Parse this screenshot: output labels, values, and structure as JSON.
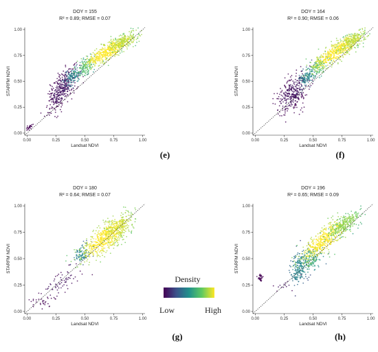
{
  "chart_data": [
    {
      "id": "e",
      "type": "scatter",
      "title": "DOY = 155",
      "stats": "R² = 0.89; RMSE = 0.07",
      "xlabel": "Landsat NDVI",
      "ylabel": "STARFM NDVI",
      "xlim": [
        -0.02,
        1.02
      ],
      "ylim": [
        -0.02,
        1.02
      ],
      "xticks": [
        "0.00",
        "0.25",
        "0.50",
        "0.75",
        "1.00"
      ],
      "yticks": [
        "0.00",
        "0.25",
        "0.50",
        "0.75",
        "1.00"
      ],
      "panel_label": "(e)",
      "clusters": [
        {
          "x": 0.3,
          "y": 0.42,
          "sx": 0.06,
          "sy": 0.1,
          "rho": 0.6,
          "n": 380,
          "d": 0.05
        },
        {
          "x": 0.4,
          "y": 0.55,
          "sx": 0.04,
          "sy": 0.05,
          "rho": 0.5,
          "n": 120,
          "d": 0.45
        },
        {
          "x": 0.5,
          "y": 0.63,
          "sx": 0.04,
          "sy": 0.05,
          "rho": 0.5,
          "n": 120,
          "d": 0.7
        },
        {
          "x": 0.72,
          "y": 0.8,
          "sx": 0.11,
          "sy": 0.08,
          "rho": 0.85,
          "n": 520,
          "d": 1.0
        },
        {
          "x": 0.83,
          "y": 0.88,
          "sx": 0.06,
          "sy": 0.05,
          "rho": 0.7,
          "n": 160,
          "d": 0.88
        },
        {
          "x": 0.02,
          "y": 0.06,
          "sx": 0.012,
          "sy": 0.012,
          "rho": 0.5,
          "n": 25,
          "d": 0.0
        }
      ]
    },
    {
      "id": "f",
      "type": "scatter",
      "title": "DOY = 164",
      "stats": "R² = 0.90; RMSE = 0.06",
      "xlabel": "Landsat NDVI",
      "ylabel": "STARFM NDVI",
      "xlim": [
        -0.02,
        1.02
      ],
      "ylim": [
        -0.02,
        1.02
      ],
      "xticks": [
        "0.00",
        "0.25",
        "0.50",
        "0.75",
        "1.00"
      ],
      "yticks": [
        "0.00",
        "0.25",
        "0.50",
        "0.75",
        "1.00"
      ],
      "panel_label": "(f)",
      "clusters": [
        {
          "x": 0.32,
          "y": 0.38,
          "sx": 0.07,
          "sy": 0.1,
          "rho": 0.6,
          "n": 340,
          "d": 0.05
        },
        {
          "x": 0.45,
          "y": 0.55,
          "sx": 0.04,
          "sy": 0.05,
          "rho": 0.5,
          "n": 120,
          "d": 0.45
        },
        {
          "x": 0.55,
          "y": 0.65,
          "sx": 0.04,
          "sy": 0.05,
          "rho": 0.5,
          "n": 110,
          "d": 0.72
        },
        {
          "x": 0.72,
          "y": 0.8,
          "sx": 0.11,
          "sy": 0.09,
          "rho": 0.85,
          "n": 540,
          "d": 1.0
        },
        {
          "x": 0.83,
          "y": 0.88,
          "sx": 0.06,
          "sy": 0.05,
          "rho": 0.7,
          "n": 160,
          "d": 0.88
        }
      ]
    },
    {
      "id": "g",
      "type": "scatter",
      "title": "DOY = 180",
      "stats": "R² = 0.64; RMSE = 0.07",
      "xlabel": "Landsat NDVI",
      "ylabel": "STARFM NDVI",
      "xlim": [
        -0.02,
        1.02
      ],
      "ylim": [
        -0.02,
        1.02
      ],
      "xticks": [
        "0.00",
        "0.25",
        "0.50",
        "0.75",
        "1.00"
      ],
      "yticks": [
        "0.00",
        "0.25",
        "0.50",
        "0.75",
        "1.00"
      ],
      "panel_label": "(g)",
      "clusters": [
        {
          "x": 0.28,
          "y": 0.25,
          "sx": 0.1,
          "sy": 0.09,
          "rho": 0.7,
          "n": 70,
          "d": 0.05
        },
        {
          "x": 0.48,
          "y": 0.55,
          "sx": 0.04,
          "sy": 0.05,
          "rho": 0.4,
          "n": 90,
          "d": 0.45
        },
        {
          "x": 0.68,
          "y": 0.7,
          "sx": 0.1,
          "sy": 0.1,
          "rho": 0.75,
          "n": 620,
          "d": 1.0
        },
        {
          "x": 0.8,
          "y": 0.8,
          "sx": 0.06,
          "sy": 0.06,
          "rho": 0.6,
          "n": 160,
          "d": 0.92
        },
        {
          "x": 0.15,
          "y": 0.1,
          "sx": 0.05,
          "sy": 0.02,
          "rho": 0.3,
          "n": 25,
          "d": 0.0
        }
      ]
    },
    {
      "id": "h",
      "type": "scatter",
      "title": "DOY = 196",
      "stats": "R² = 0.65; RMSE = 0.09",
      "xlabel": "Landsat NDVI",
      "ylabel": "STARFM NDVI",
      "xlim": [
        -0.02,
        1.02
      ],
      "ylim": [
        -0.02,
        1.02
      ],
      "xticks": [
        "0.00",
        "0.25",
        "0.50",
        "0.75",
        "1.00"
      ],
      "yticks": [
        "0.00",
        "0.25",
        "0.50",
        "0.75",
        "1.00"
      ],
      "panel_label": "(h)",
      "clusters": [
        {
          "x": 0.38,
          "y": 0.42,
          "sx": 0.04,
          "sy": 0.08,
          "rho": 0.3,
          "n": 200,
          "d": 0.45
        },
        {
          "x": 0.48,
          "y": 0.5,
          "sx": 0.05,
          "sy": 0.07,
          "rho": 0.5,
          "n": 140,
          "d": 0.6
        },
        {
          "x": 0.6,
          "y": 0.68,
          "sx": 0.1,
          "sy": 0.1,
          "rho": 0.8,
          "n": 460,
          "d": 1.0
        },
        {
          "x": 0.78,
          "y": 0.83,
          "sx": 0.07,
          "sy": 0.06,
          "rho": 0.75,
          "n": 260,
          "d": 0.82
        },
        {
          "x": 0.05,
          "y": 0.32,
          "sx": 0.015,
          "sy": 0.025,
          "rho": 0.2,
          "n": 30,
          "d": 0.0
        },
        {
          "x": 0.25,
          "y": 0.25,
          "sx": 0.05,
          "sy": 0.03,
          "rho": 0.3,
          "n": 14,
          "d": 0.05
        }
      ]
    }
  ],
  "legend": {
    "title": "Density",
    "low_label": "Low",
    "high_label": "High",
    "colors": [
      "#440154",
      "#3b528b",
      "#21918c",
      "#5ec962",
      "#fde725"
    ]
  },
  "reference_line": "1:1"
}
